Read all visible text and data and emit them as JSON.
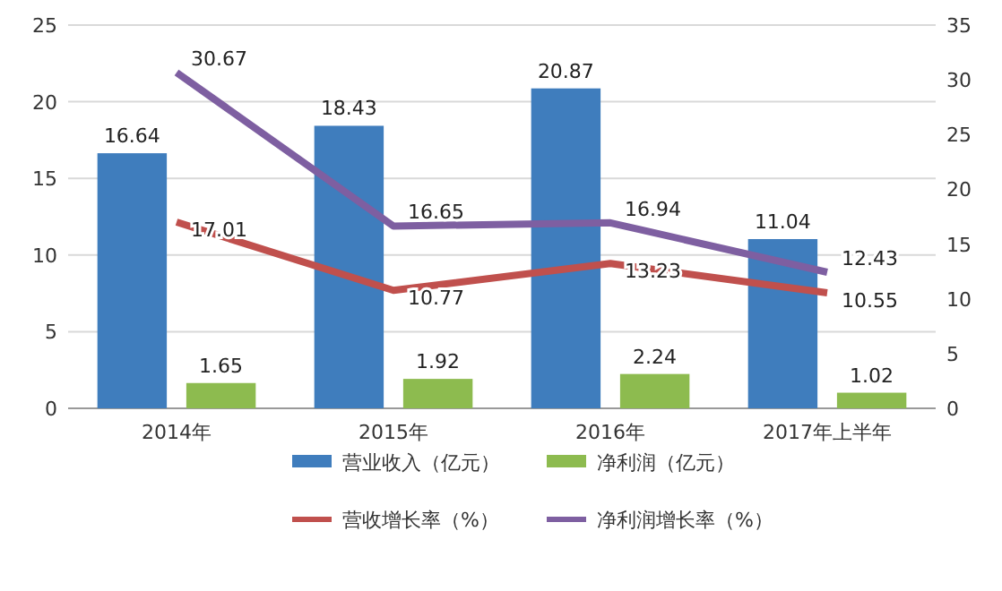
{
  "chart_data": {
    "type": "bar",
    "categories": [
      "2014年",
      "2015年",
      "2016年",
      "2017年上半年"
    ],
    "series": [
      {
        "name": "营业收入（亿元）",
        "color": "#3f7dbd",
        "values": [
          16.64,
          18.43,
          20.87,
          11.04
        ]
      },
      {
        "name": "净利润（亿元）",
        "color": "#8dbb4f",
        "values": [
          1.65,
          1.92,
          2.24,
          1.02
        ]
      },
      {
        "name": "营收增长率（%）",
        "type": "line",
        "axis": "y2",
        "color": "#c0504d",
        "values": [
          17.01,
          10.77,
          13.23,
          10.55
        ]
      },
      {
        "name": "净利润增长率（%）",
        "type": "line",
        "axis": "y2",
        "color": "#7e5fa1",
        "values": [
          30.67,
          16.65,
          16.94,
          12.43
        ]
      }
    ],
    "ylim": [
      0,
      25
    ],
    "yticks": [
      0,
      5,
      10,
      15,
      20,
      25
    ],
    "y2lim": [
      0,
      35
    ],
    "y2ticks": [
      0,
      5,
      10,
      15,
      20,
      25,
      30,
      35
    ],
    "data_labels": true,
    "grid": "y",
    "legend": "bottom"
  }
}
